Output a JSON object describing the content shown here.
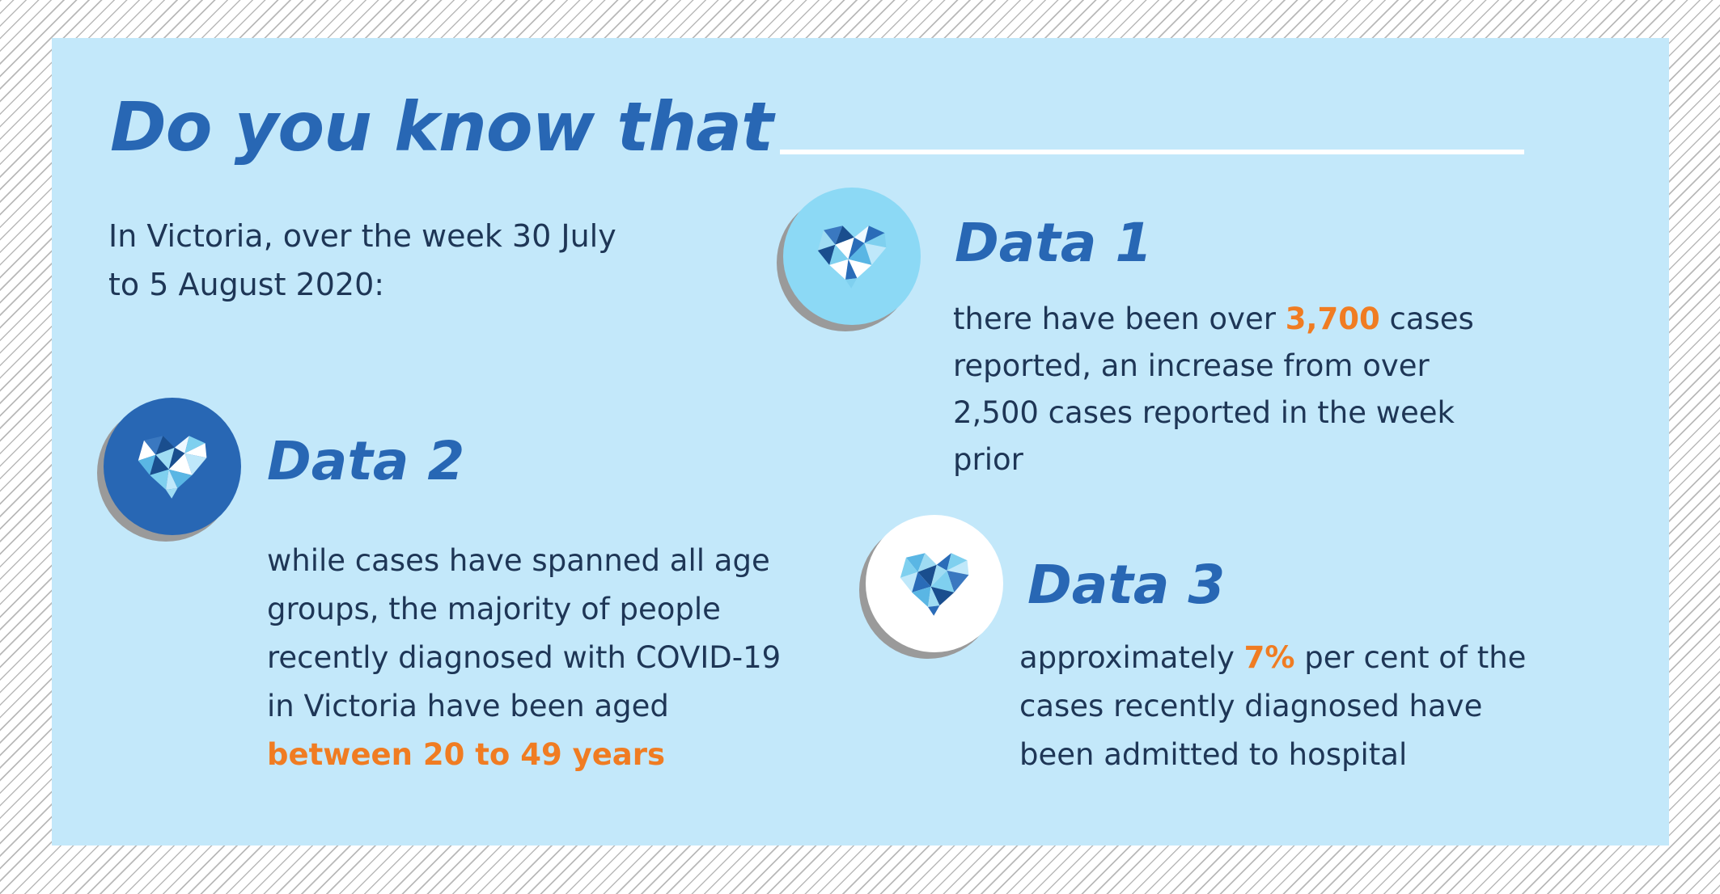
{
  "header": {
    "title": "Do you know that",
    "intro_line1": "In Victoria, over the week 30 July",
    "intro_line2": "to 5 August 2020:"
  },
  "colors": {
    "panel_background": "#c3e8fa",
    "title_blue": "#2867b4",
    "highlight_orange": "#f07c22",
    "body_text": "#1e3656",
    "badge_light_blue": "#8cd9f5",
    "badge_dark_blue": "#2867b4",
    "badge_white": "#ffffff"
  },
  "data1": {
    "icon": "heart-icon",
    "title": "Data 1",
    "line1_before": "there have been over ",
    "line1_highlight": "3,700",
    "line1_after": " cases",
    "line2": "reported, an increase from over",
    "line3": "2,500 cases reported in the week",
    "line4": "prior"
  },
  "data2": {
    "icon": "heart-icon",
    "title": "Data 2",
    "line1": "while cases have spanned all age",
    "line2": "groups, the majority of people",
    "line3": "recently diagnosed with COVID-19",
    "line4": "in Victoria have been aged",
    "line5_highlight": "between 20 to 49 years"
  },
  "data3": {
    "icon": "heart-icon",
    "title": "Data 3",
    "line1_before": "approximately ",
    "line1_highlight": "7%",
    "line1_after": " per cent of the",
    "line2": "cases recently diagnosed have",
    "line3": "been admitted to hospital"
  }
}
